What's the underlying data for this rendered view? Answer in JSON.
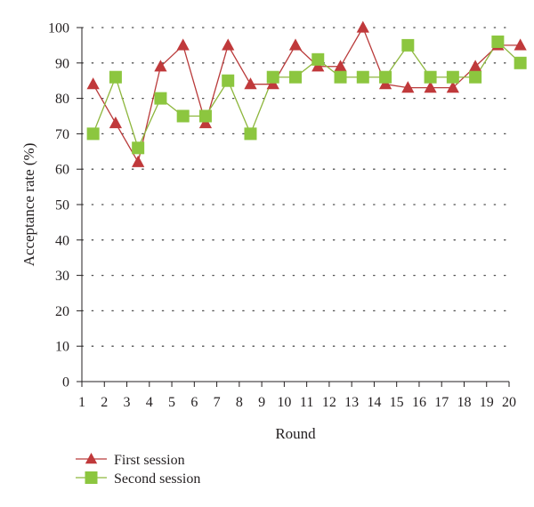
{
  "chart_data": {
    "type": "line",
    "title": "",
    "xlabel": "Round",
    "ylabel": "Acceptance rate (%)",
    "xlim": [
      1,
      20
    ],
    "ylim": [
      0,
      100
    ],
    "x_ticks": [
      1,
      2,
      3,
      4,
      5,
      6,
      7,
      8,
      9,
      10,
      11,
      12,
      13,
      14,
      15,
      16,
      17,
      18,
      19,
      20
    ],
    "y_ticks": [
      0,
      10,
      20,
      30,
      40,
      50,
      60,
      70,
      80,
      90,
      100
    ],
    "grid": "horizontal dotted",
    "legend_position": "bottom-left",
    "series": [
      {
        "name": "First session",
        "marker": "triangle",
        "color": "#b93a3a",
        "x": [
          1.5,
          2.5,
          3.5,
          4.5,
          5.5,
          6.5,
          7.5,
          8.5,
          9.5,
          10.5,
          11.5,
          12.5,
          13.5,
          14.5,
          15.5,
          16.5,
          17.5,
          18.5,
          19.5,
          20.5
        ],
        "values": [
          84,
          73,
          62,
          89,
          95,
          73,
          95,
          84,
          84,
          95,
          89,
          89,
          100,
          84,
          83,
          83,
          83,
          89,
          95,
          95
        ]
      },
      {
        "name": "Second session",
        "marker": "square",
        "color": "#8db63c",
        "x": [
          1.5,
          2.5,
          3.5,
          4.5,
          5.5,
          6.5,
          7.5,
          8.5,
          9.5,
          10.5,
          11.5,
          12.5,
          13.5,
          14.5,
          15.5,
          16.5,
          17.5,
          18.5,
          19.5,
          20.5
        ],
        "values": [
          70,
          86,
          66,
          80,
          75,
          75,
          85,
          70,
          86,
          86,
          91,
          86,
          86,
          86,
          95,
          86,
          86,
          86,
          96,
          90
        ]
      }
    ]
  },
  "colors": {
    "axis": "#231f20",
    "grid": "#4d4d4d",
    "first_line": "#b93a3a",
    "first_marker": "#c0393b",
    "second_line": "#8db63c",
    "second_marker": "#8cc63f"
  }
}
